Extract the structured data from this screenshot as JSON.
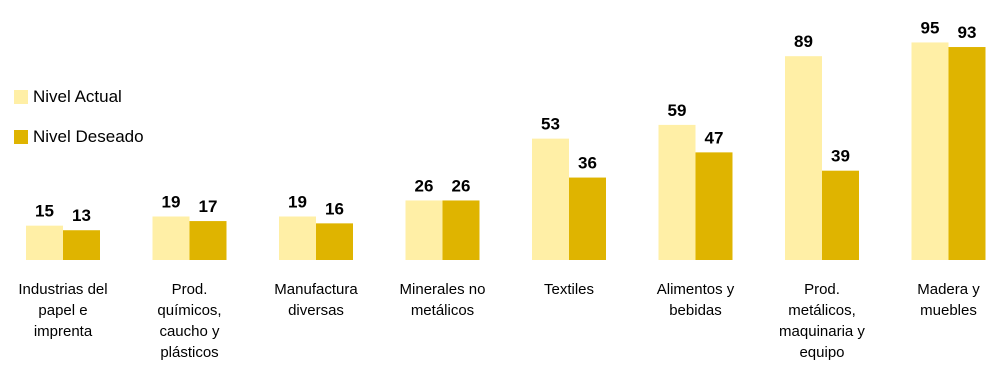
{
  "chart_data": {
    "type": "bar",
    "title": "",
    "xlabel": "",
    "ylabel": "",
    "ylim": [
      0,
      100
    ],
    "grid": false,
    "legend_position": "left",
    "categories": [
      "Industrias del papel e imprenta",
      "Prod. químicos, caucho y plásticos",
      "Manufactura diversas",
      "Minerales no metálicos",
      "Textiles",
      "Alimentos y bebidas",
      "Prod. metálicos, maquinaria y equipo",
      "Madera y muebles"
    ],
    "category_label_lines": [
      [
        "Industrias del",
        "papel e",
        "imprenta"
      ],
      [
        "Prod.",
        "químicos,",
        "caucho y",
        "plásticos"
      ],
      [
        "Manufactura",
        "diversas"
      ],
      [
        "Minerales no",
        "metálicos"
      ],
      [
        "Textiles"
      ],
      [
        "Alimentos y",
        "bebidas"
      ],
      [
        "Prod.",
        "metálicos,",
        "maquinaria y",
        "equipo"
      ],
      [
        "Madera y",
        "muebles"
      ]
    ],
    "series": [
      {
        "name": "Nivel Actual",
        "color": "#FFEFA6",
        "values": [
          15,
          19,
          19,
          26,
          53,
          59,
          89,
          95
        ]
      },
      {
        "name": "Nivel Deseado",
        "color": "#DFB400",
        "values": [
          13,
          17,
          16,
          26,
          36,
          47,
          39,
          93
        ]
      }
    ]
  }
}
